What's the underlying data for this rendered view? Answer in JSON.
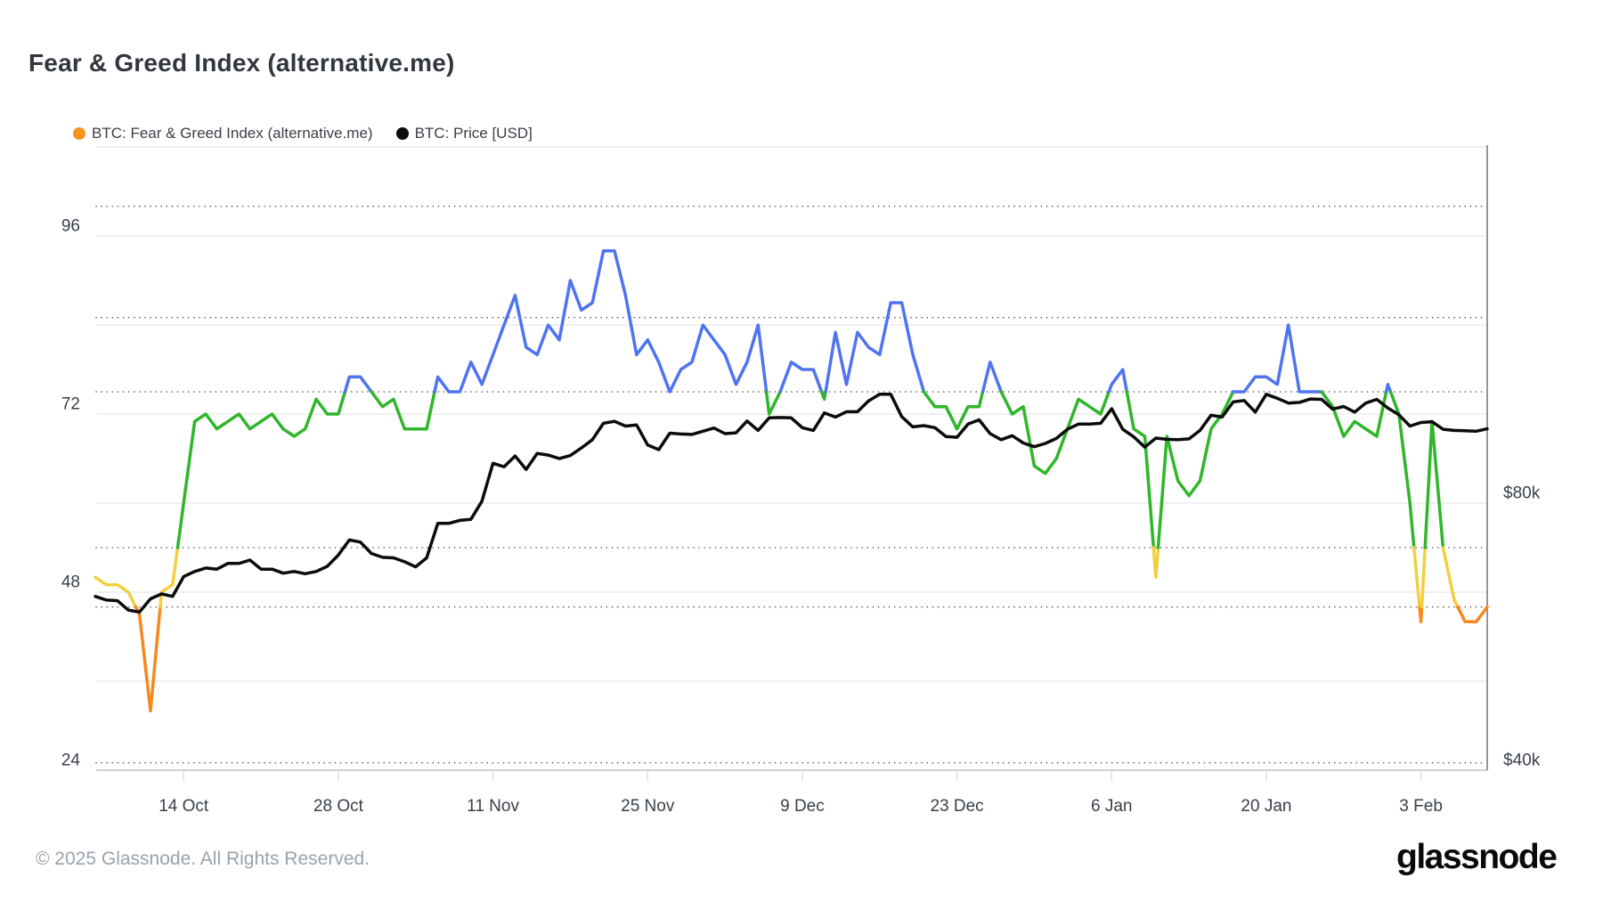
{
  "title": "Fear & Greed Index (alternative.me)",
  "legend": {
    "items": [
      {
        "label": "BTC: Fear & Greed Index (alternative.me)",
        "color": "#f7941d"
      },
      {
        "label": "BTC: Price [USD]",
        "color": "#0b0b0b"
      }
    ]
  },
  "footer": {
    "copyright": "© 2025 Glassnode. All Rights Reserved.",
    "brand": "glassnode"
  },
  "chart_data": {
    "type": "line",
    "title": "Fear & Greed Index (alternative.me)",
    "x_tick_labels": [
      "14 Oct",
      "28 Oct",
      "11 Nov",
      "25 Nov",
      "9 Dec",
      "23 Dec",
      "6 Jan",
      "20 Jan",
      "3 Feb"
    ],
    "x_tick_indices": [
      8,
      22,
      36,
      50,
      64,
      78,
      92,
      106,
      120
    ],
    "y_left": {
      "tick_values": [
        96,
        72,
        48,
        24
      ],
      "grid_values": [
        108,
        96,
        84,
        72,
        60,
        48,
        36,
        24
      ],
      "zone_line_values": [
        100,
        85,
        75,
        54,
        46,
        25
      ],
      "range": [
        24,
        108
      ]
    },
    "y_right": {
      "ticks": [
        {
          "label": "$80k",
          "value": 80
        },
        {
          "label": "$40k",
          "value": 40
        }
      ],
      "scale": "log2",
      "anchor_value_k": 80
    },
    "zone_colors": {
      "extreme_greed_above_75": "#4f74f0",
      "greed_54_to_75": "#2fb62a",
      "neutral_46_to_54": "#f3cf3d",
      "fear_below_46": "#f7881c"
    },
    "series": [
      {
        "name": "BTC: Fear & Greed Index (alternative.me)",
        "values": [
          50,
          49,
          49,
          48,
          45,
          32,
          48,
          49,
          60,
          71,
          72,
          70,
          71,
          72,
          70,
          71,
          72,
          70,
          69,
          70,
          74,
          72,
          72,
          77,
          77,
          75,
          73,
          74,
          70,
          70,
          70,
          77,
          75,
          75,
          79,
          76,
          80,
          84,
          88,
          81,
          80,
          84,
          82,
          90,
          86,
          87,
          94,
          94,
          88,
          80,
          82,
          79,
          75,
          78,
          79,
          84,
          82,
          80,
          76,
          79,
          84,
          72,
          75,
          79,
          78,
          78,
          74,
          83,
          76,
          83,
          81,
          80,
          87,
          87,
          80,
          75,
          73,
          73,
          70,
          73,
          73,
          79,
          75,
          72,
          73,
          65,
          64,
          66,
          70,
          74,
          73,
          72,
          76,
          78,
          70,
          69,
          50,
          69,
          63,
          61,
          63,
          70,
          72,
          75,
          75,
          77,
          77,
          76,
          84,
          75,
          75,
          75,
          73,
          69,
          71,
          70,
          69,
          76,
          72,
          60,
          44,
          71,
          54,
          47,
          44,
          44,
          46
        ]
      },
      {
        "name": "BTC: Price [USD]",
        "unit": "USD thousands",
        "values": [
          62.8,
          62.2,
          62.1,
          60.6,
          60.3,
          62.4,
          63.2,
          62.8,
          66.1,
          67.0,
          67.6,
          67.4,
          68.4,
          68.4,
          69.0,
          67.4,
          67.4,
          66.7,
          67.0,
          66.6,
          67.0,
          67.9,
          69.9,
          72.7,
          72.3,
          70.2,
          69.5,
          69.4,
          68.7,
          67.8,
          69.4,
          75.9,
          75.9,
          76.5,
          76.7,
          80.4,
          88.7,
          87.9,
          90.4,
          87.3,
          91.0,
          90.6,
          89.8,
          90.5,
          92.3,
          94.3,
          98.4,
          98.9,
          97.7,
          98.0,
          93.0,
          91.9,
          95.9,
          95.7,
          95.6,
          96.4,
          97.2,
          95.8,
          96.0,
          99.0,
          96.6,
          99.8,
          99.9,
          99.8,
          97.3,
          96.6,
          101.1,
          100.0,
          101.4,
          101.4,
          104.3,
          106.1,
          106.1,
          100.1,
          97.5,
          97.8,
          97.3,
          95.1,
          94.9,
          98.2,
          99.3,
          95.8,
          94.3,
          95.3,
          93.5,
          92.6,
          93.4,
          94.6,
          96.9,
          98.2,
          98.2,
          98.4,
          102.2,
          96.9,
          95.0,
          92.5,
          94.7,
          94.4,
          94.3,
          94.5,
          96.6,
          100.5,
          100.0,
          104.0,
          104.4,
          101.3,
          106.1,
          105.0,
          103.7,
          103.9,
          104.8,
          104.7,
          102.1,
          102.8,
          101.3,
          103.7,
          104.7,
          102.4,
          100.6,
          97.7,
          98.6,
          98.8,
          96.9,
          96.6,
          96.5,
          96.4,
          97.0
        ]
      }
    ],
    "legend_position": "top-left",
    "grid": "horizontal-only",
    "colors": {
      "price_line": "#0b0b0b",
      "faint_grid": "#f0f0f1",
      "zone_dotted": "#55585c",
      "bottom_axis": "#cdd2d6",
      "right_border": "#8f969e",
      "tick_mark": "#dfe3e6",
      "axis_text": "#39404a"
    }
  }
}
